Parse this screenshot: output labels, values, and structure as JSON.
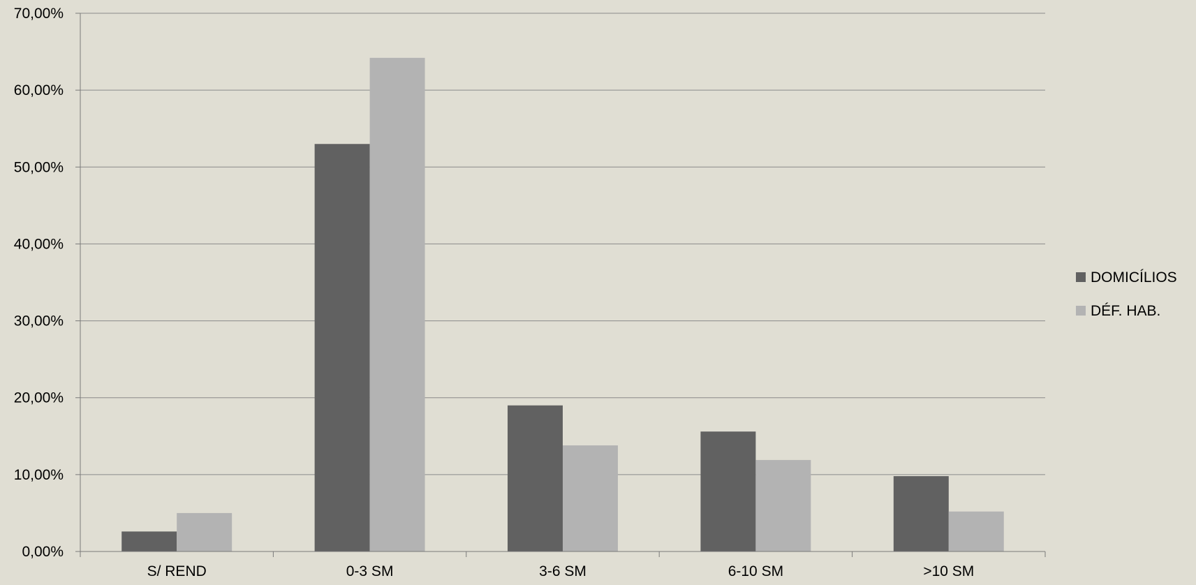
{
  "colors": {
    "background": "#e0ded3",
    "gridline": "#8a8a8a",
    "axis": "#7a7a7a",
    "text": "#000000"
  },
  "chart_data": {
    "type": "bar",
    "title": "",
    "xlabel": "",
    "ylabel": "",
    "categories": [
      "S/ REND",
      "0-3 SM",
      "3-6 SM",
      "6-10 SM",
      ">10 SM"
    ],
    "series": [
      {
        "name": "DOMICÍLIOS",
        "color": "#616161",
        "values": [
          2.6,
          53.0,
          19.0,
          15.6,
          9.8
        ]
      },
      {
        "name": "DÉF. HAB.",
        "color": "#b3b3b3",
        "values": [
          5.0,
          64.2,
          13.8,
          11.9,
          5.2
        ]
      }
    ],
    "ylim": [
      0,
      70
    ],
    "yticks": [
      0,
      10,
      20,
      30,
      40,
      50,
      60,
      70
    ],
    "ytick_labels": [
      "0,00%",
      "10,00%",
      "20,00%",
      "30,00%",
      "40,00%",
      "50,00%",
      "60,00%",
      "70,00%"
    ],
    "grid": true,
    "legend_position": "right"
  }
}
